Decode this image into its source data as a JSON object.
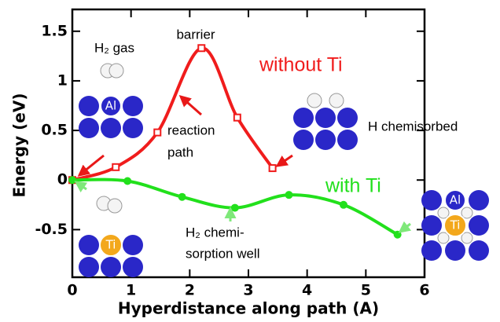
{
  "chart_data": {
    "type": "line",
    "xlabel": "Hyperdistance along path (A)",
    "ylabel": "Energy (eV)",
    "xlim": [
      0,
      6
    ],
    "ylim": [
      -0.98,
      1.72
    ],
    "xticks": [
      0,
      1,
      2,
      3,
      4,
      5,
      6
    ],
    "yticks": [
      -0.5,
      0,
      0.5,
      1,
      1.5
    ],
    "series": [
      {
        "name": "without Ti",
        "color": "#f01c1c",
        "marker": "square",
        "x": [
          0,
          0.74,
          1.45,
          2.2,
          2.81,
          3.41
        ],
        "values": [
          0,
          0.13,
          0.48,
          1.33,
          0.63,
          0.12
        ]
      },
      {
        "name": "with Ti",
        "color": "#22e01c",
        "marker": "circle",
        "x": [
          0,
          0.94,
          1.87,
          2.77,
          3.69,
          4.62,
          5.54
        ],
        "values": [
          0,
          -0.01,
          -0.17,
          -0.28,
          -0.15,
          -0.25,
          -0.55
        ]
      }
    ],
    "annotations": [
      "barrier",
      "H₂ gas",
      [
        "reaction",
        "path"
      ],
      "H chemisorbed",
      [
        "H₂ chemi-",
        "sorption well"
      ]
    ],
    "inset_labels": [
      "Al",
      "Ti",
      "Al",
      "Ti"
    ]
  }
}
